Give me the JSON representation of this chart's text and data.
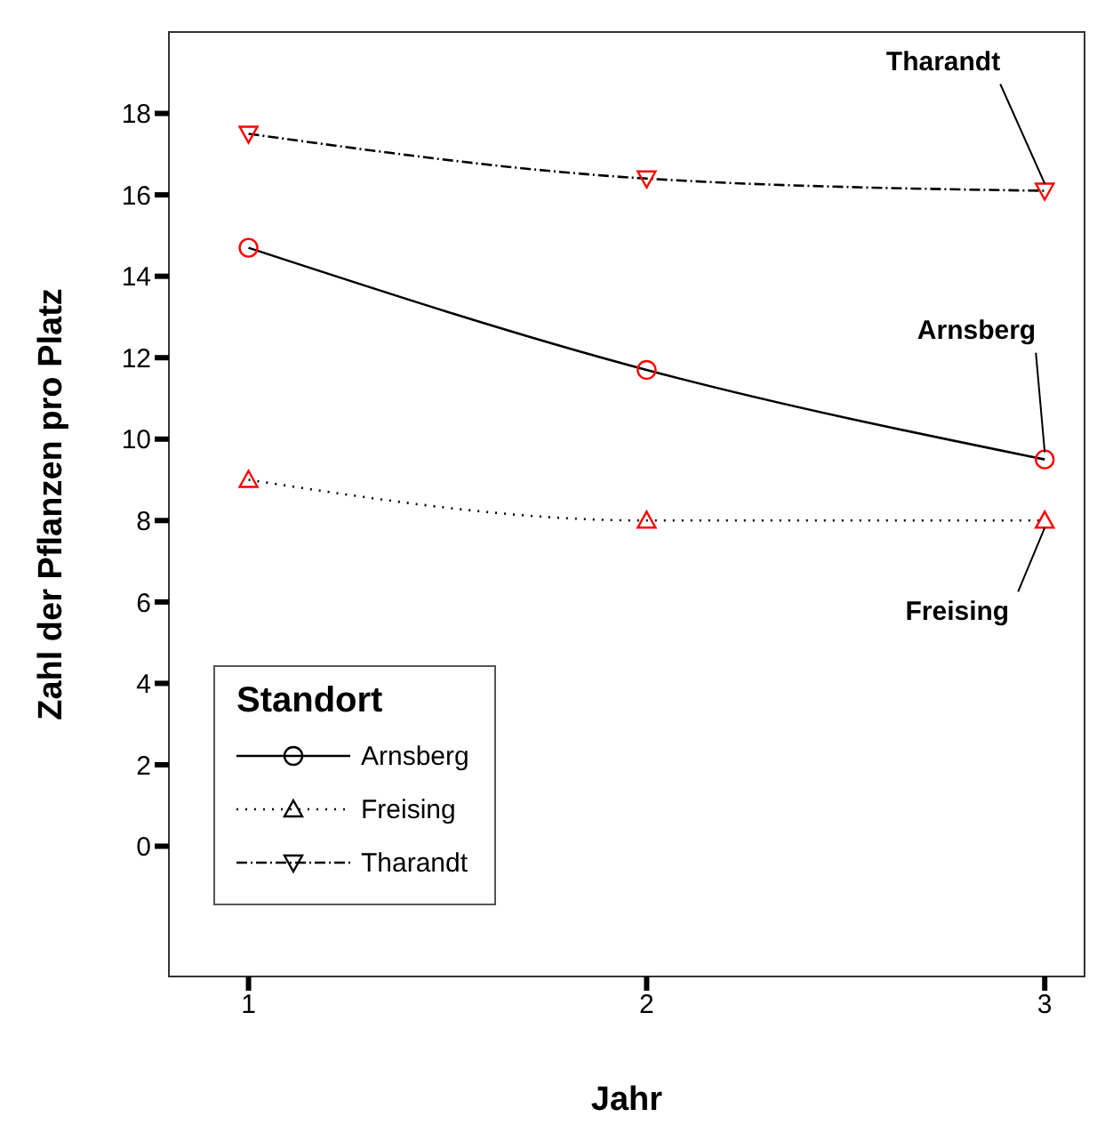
{
  "chart_data": {
    "type": "line",
    "xlabel": "Jahr",
    "ylabel": "Zahl der Pflanzen pro Platz",
    "legend_title": "Standort",
    "x": [
      1,
      2,
      3
    ],
    "series": [
      {
        "name": "Arnsberg",
        "color": "#000000",
        "colors": [
          "#ff0000",
          "#ff0000",
          "#ff0000"
        ],
        "marker": "circle",
        "line_style": "solid",
        "values": [
          14.7,
          11.7,
          9.5
        ]
      },
      {
        "name": "Freising",
        "color": "#000000",
        "colors": [
          "#ff0000",
          "#ff0000",
          "#ff0000"
        ],
        "marker": "triangle",
        "line_style": "dotted",
        "values": [
          9.0,
          8.0,
          8.0
        ]
      },
      {
        "name": "Tharandt",
        "color": "#000000",
        "colors": [
          "#ff0000",
          "#ff0000",
          "#ff0000"
        ],
        "marker": "triangle-down",
        "line_style": "dashed",
        "values": [
          17.5,
          16.4,
          16.1
        ]
      }
    ],
    "xlim": [
      0.8,
      3.1
    ],
    "xticks": [
      1,
      2,
      3
    ],
    "ylim": [
      -3.2,
      20
    ],
    "yticks": [
      0,
      2,
      4,
      6,
      8,
      10,
      12,
      14,
      16,
      18
    ],
    "grid": false,
    "legend": "bottom left"
  }
}
